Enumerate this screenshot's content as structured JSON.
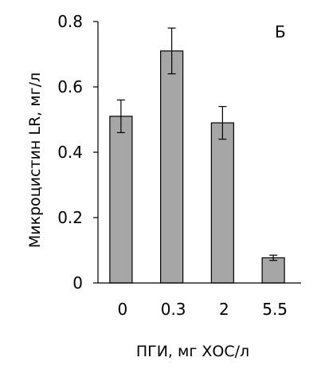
{
  "chart_data": {
    "type": "bar",
    "panel_label": "Б",
    "categories": [
      "0",
      "0.3",
      "2",
      "5.5"
    ],
    "values": [
      0.51,
      0.71,
      0.49,
      0.077
    ],
    "errors": [
      0.05,
      0.07,
      0.05,
      0.008
    ],
    "xlabel": "ПГИ, мг ХОС/л",
    "ylabel": "Микроцистин LR, мг/л",
    "ylim": [
      0,
      0.8
    ],
    "yticks": [
      0,
      0.2,
      0.4,
      0.6,
      0.8
    ],
    "ytick_labels": [
      "0",
      "0.2",
      "0.4",
      "0.6",
      "0.8"
    ],
    "grid": false,
    "bar_color": "#a6a6a6"
  }
}
